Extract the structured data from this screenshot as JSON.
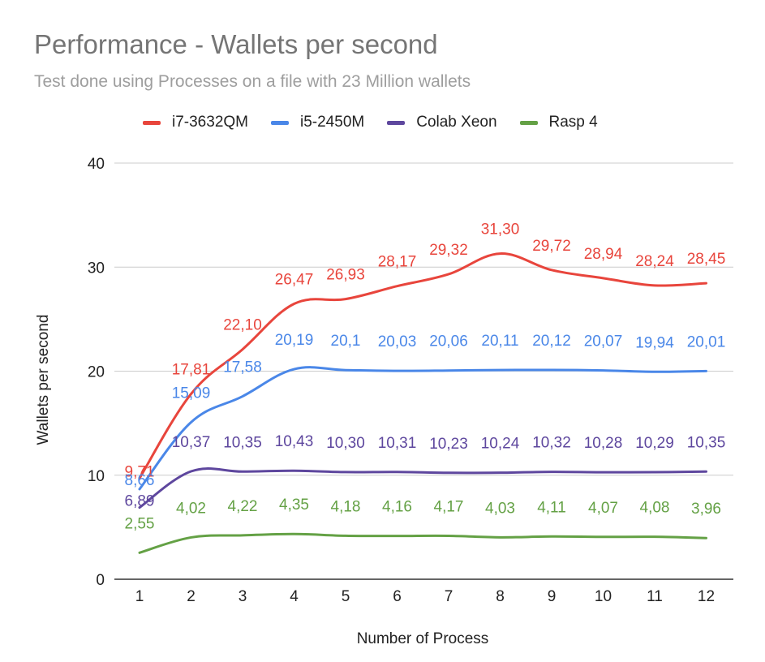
{
  "chart_data": {
    "type": "line",
    "title": "Performance - Wallets per second",
    "subtitle": "Test done using Processes on a file with 23 Million wallets",
    "xlabel": "Number of Process",
    "ylabel": "Wallets per second",
    "x": [
      1,
      2,
      3,
      4,
      5,
      6,
      7,
      8,
      9,
      10,
      11,
      12
    ],
    "ylim": [
      0,
      40
    ],
    "yticks": [
      0,
      10,
      20,
      30,
      40
    ],
    "grid": true,
    "legend_position": "top",
    "series": [
      {
        "name": "i7-3632QM",
        "color": "#e8453c",
        "values": [
          9.71,
          17.81,
          22.1,
          26.47,
          26.93,
          28.17,
          29.32,
          31.3,
          29.72,
          28.94,
          28.24,
          28.45
        ],
        "labels": [
          "9,71",
          "17,81",
          "22,10",
          "26,47",
          "26,93",
          "28,17",
          "29,32",
          "31,30",
          "29,72",
          "28,94",
          "28,24",
          "28,45"
        ]
      },
      {
        "name": "i5-2450M",
        "color": "#4a87e8",
        "values": [
          8.66,
          15.09,
          17.58,
          20.19,
          20.1,
          20.03,
          20.06,
          20.11,
          20.12,
          20.07,
          19.94,
          20.01
        ],
        "labels": [
          "8,66",
          "15,09",
          "17,58",
          "20,19",
          "20,1",
          "20,03",
          "20,06",
          "20,11",
          "20,12",
          "20,07",
          "19,94",
          "20,01"
        ]
      },
      {
        "name": "Colab Xeon",
        "color": "#5e479e",
        "values": [
          6.89,
          10.37,
          10.35,
          10.43,
          10.3,
          10.31,
          10.23,
          10.24,
          10.32,
          10.28,
          10.29,
          10.35
        ],
        "labels": [
          "6,89",
          "10,37",
          "10,35",
          "10,43",
          "10,30",
          "10,31",
          "10,23",
          "10,24",
          "10,32",
          "10,28",
          "10,29",
          "10,35"
        ]
      },
      {
        "name": "Rasp 4",
        "color": "#64a145",
        "values": [
          2.55,
          4.02,
          4.22,
          4.35,
          4.18,
          4.16,
          4.17,
          4.03,
          4.11,
          4.07,
          4.08,
          3.96
        ],
        "labels": [
          "2,55",
          "4,02",
          "4,22",
          "4,35",
          "4,18",
          "4,16",
          "4,17",
          "4,03",
          "4,11",
          "4,07",
          "4,08",
          "3,96"
        ]
      }
    ]
  }
}
